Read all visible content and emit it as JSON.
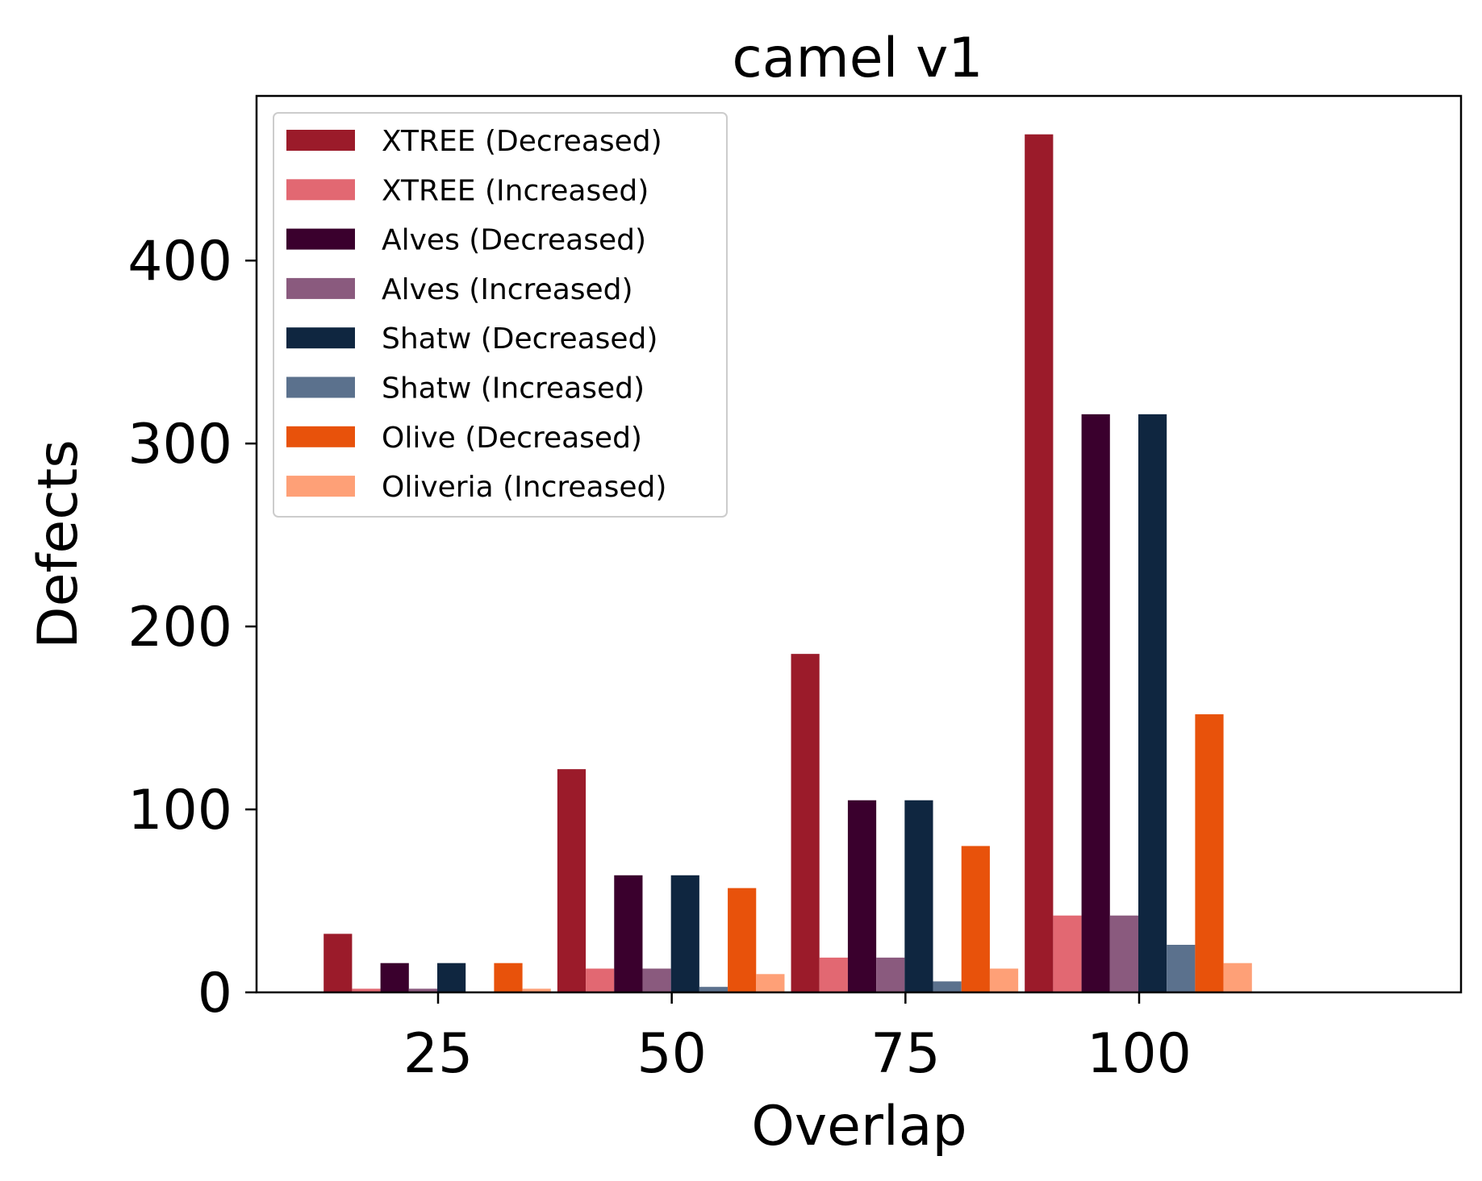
{
  "chart_data": {
    "type": "bar",
    "title": "camel v1",
    "xlabel": "Overlap",
    "ylabel": "Defects",
    "categories": [
      "25",
      "50",
      "75",
      "100"
    ],
    "ylim": [
      0,
      490
    ],
    "yticks": [
      0,
      100,
      200,
      300,
      400
    ],
    "grid": false,
    "legend_position": "top-left",
    "series": [
      {
        "name": "XTREE (Decreased)",
        "color": "#9b1b2a",
        "values": [
          32,
          122,
          185,
          469
        ]
      },
      {
        "name": "XTREE (Increased)",
        "color": "#e26872",
        "values": [
          2,
          13,
          19,
          42
        ]
      },
      {
        "name": "Alves (Decreased)",
        "color": "#3a002d",
        "values": [
          16,
          64,
          105,
          316
        ]
      },
      {
        "name": "Alves (Increased)",
        "color": "#8a5a7e",
        "values": [
          2,
          13,
          19,
          42
        ]
      },
      {
        "name": "Shatw (Decreased)",
        "color": "#0f2640",
        "values": [
          16,
          64,
          105,
          316
        ]
      },
      {
        "name": "Shatw (Increased)",
        "color": "#5b718d",
        "values": [
          0,
          3,
          6,
          26
        ]
      },
      {
        "name": "Olive (Decreased)",
        "color": "#e8520b",
        "values": [
          16,
          57,
          80,
          152
        ]
      },
      {
        "name": "Oliveria (Increased)",
        "color": "#fea077",
        "values": [
          2,
          10,
          13,
          16
        ]
      }
    ]
  }
}
